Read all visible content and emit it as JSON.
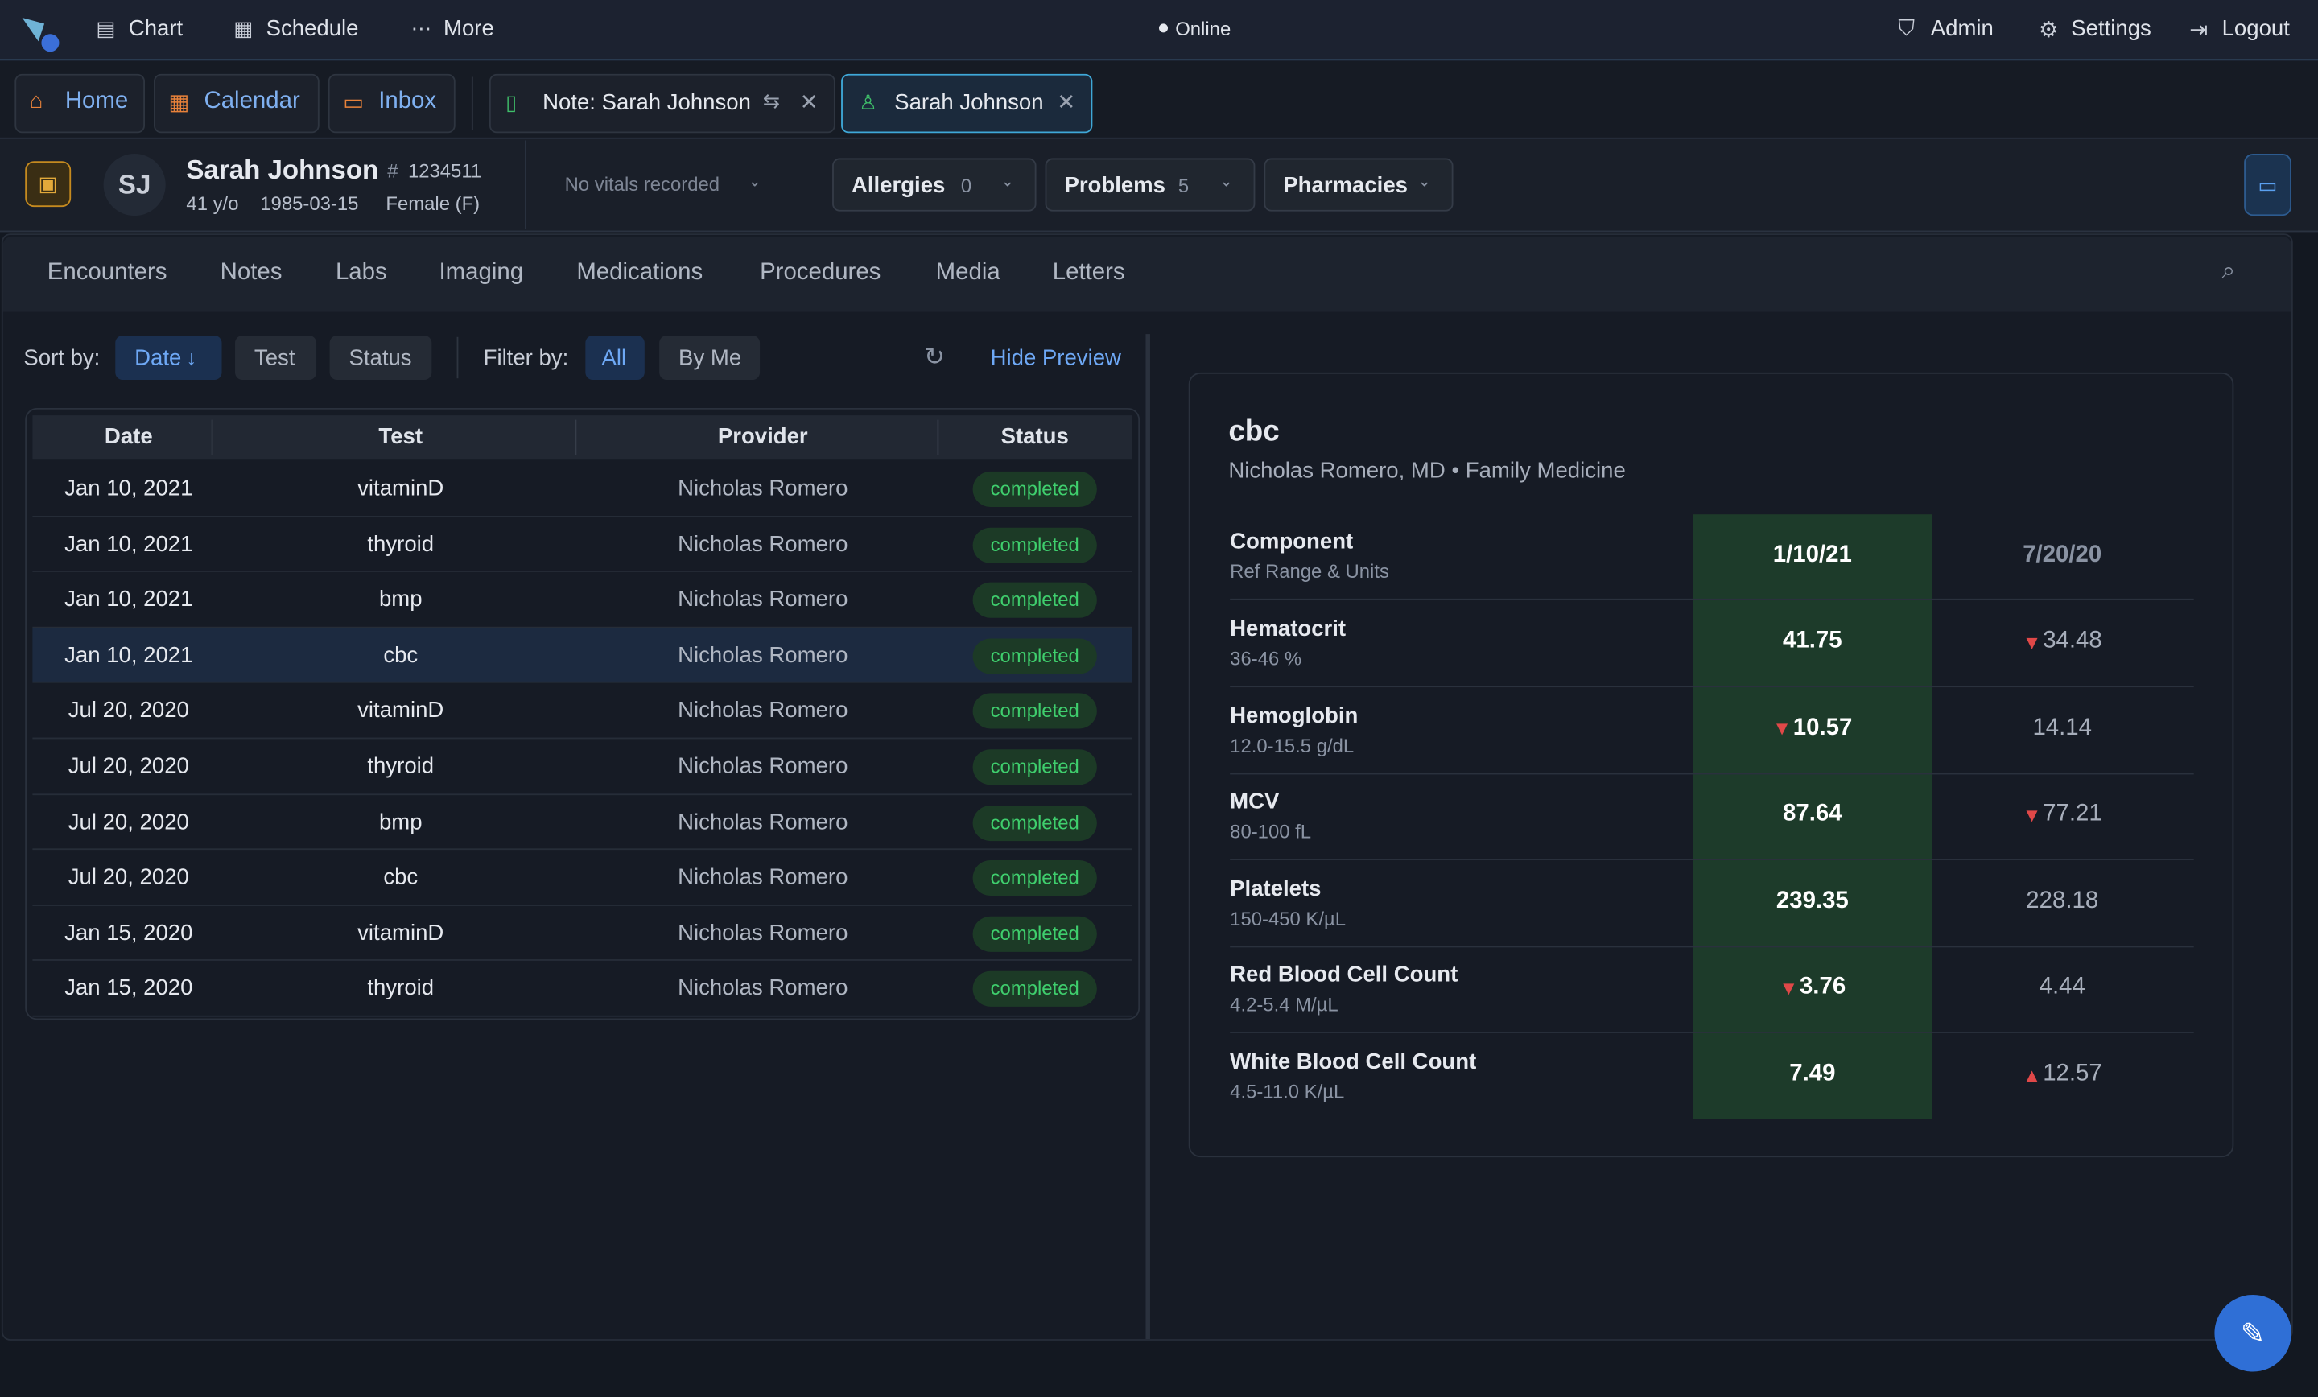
{
  "topbar": {
    "nav": [
      "Chart",
      "Schedule",
      "More"
    ],
    "status": "Online",
    "actions": [
      "Admin",
      "Settings",
      "Logout"
    ]
  },
  "tabs": {
    "pinned": [
      "Home",
      "Calendar",
      "Inbox"
    ],
    "open": [
      "Note: Sarah Johnson",
      "Sarah Johnson"
    ]
  },
  "patient": {
    "initials": "SJ",
    "name": "Sarah Johnson",
    "mrn": "1234511",
    "age": "41 y/o",
    "dob": "1985-03-15",
    "sex": "Female (F)",
    "vitals": "No vitals recorded",
    "chips": [
      {
        "label": "Allergies",
        "count": 0
      },
      {
        "label": "Problems",
        "count": 5
      },
      {
        "label": "Pharmacies"
      }
    ]
  },
  "sections": [
    "Encounters",
    "Notes",
    "Labs",
    "Imaging",
    "Medications",
    "Procedures",
    "Media",
    "Letters"
  ],
  "toolbar": {
    "sort_label": "Sort by:",
    "sort_options": [
      "Date",
      "Test",
      "Status"
    ],
    "filter_label": "Filter by:",
    "filter_options": [
      "All",
      "By Me"
    ],
    "toggle": "Hide Preview"
  },
  "table": {
    "headers": [
      "Date",
      "Test",
      "Provider",
      "Status"
    ],
    "rows": [
      [
        "Jan 10, 2021",
        "vitaminD",
        "Nicholas Romero",
        "completed"
      ],
      [
        "Jan 10, 2021",
        "thyroid",
        "Nicholas Romero",
        "completed"
      ],
      [
        "Jan 10, 2021",
        "bmp",
        "Nicholas Romero",
        "completed"
      ],
      [
        "Jan 10, 2021",
        "cbc",
        "Nicholas Romero",
        "completed"
      ],
      [
        "Jul 20, 2020",
        "vitaminD",
        "Nicholas Romero",
        "completed"
      ],
      [
        "Jul 20, 2020",
        "thyroid",
        "Nicholas Romero",
        "completed"
      ],
      [
        "Jul 20, 2020",
        "bmp",
        "Nicholas Romero",
        "completed"
      ],
      [
        "Jul 20, 2020",
        "cbc",
        "Nicholas Romero",
        "completed"
      ],
      [
        "Jan 15, 2020",
        "vitaminD",
        "Nicholas Romero",
        "completed"
      ],
      [
        "Jan 15, 2020",
        "thyroid",
        "Nicholas Romero",
        "completed"
      ]
    ]
  },
  "preview": {
    "title": "cbc",
    "subtitle": "Nicholas Romero, MD • Family Medicine",
    "component_header": "Component",
    "range_header": "Ref Range & Units",
    "dates": [
      "1/10/21",
      "7/20/20"
    ],
    "results": [
      {
        "name": "Hematocrit",
        "range": "36-46 %",
        "values": [
          41.75,
          34.48
        ],
        "flags": [
          null,
          "low"
        ]
      },
      {
        "name": "Hemoglobin",
        "range": "12.0-15.5 g/dL",
        "values": [
          10.57,
          14.14
        ],
        "flags": [
          "low",
          null
        ]
      },
      {
        "name": "MCV",
        "range": "80-100 fL",
        "values": [
          87.64,
          77.21
        ],
        "flags": [
          null,
          "low"
        ]
      },
      {
        "name": "Platelets",
        "range": "150-450 K/µL",
        "values": [
          239.35,
          228.18
        ],
        "flags": [
          null,
          null
        ]
      },
      {
        "name": "Red Blood Cell Count",
        "range": "4.2-5.4 M/µL",
        "values": [
          3.76,
          4.44
        ],
        "flags": [
          "low",
          null
        ]
      },
      {
        "name": "White Blood Cell Count",
        "range": "4.5-11.0 K/µL",
        "values": [
          7.49,
          12.57
        ],
        "flags": [
          null,
          "high"
        ]
      }
    ]
  }
}
